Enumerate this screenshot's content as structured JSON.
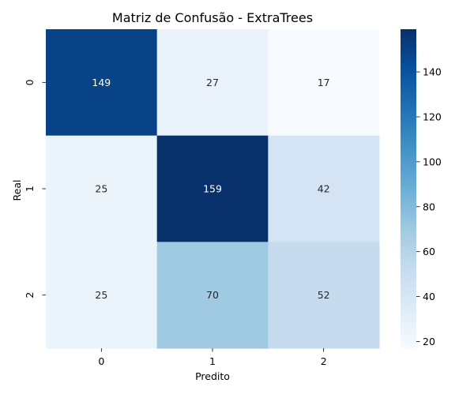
{
  "chart_data": {
    "type": "heatmap",
    "title": "Matriz de Confusão - ExtraTrees",
    "xlabel": "Predito",
    "ylabel": "Real",
    "x_categories": [
      "0",
      "1",
      "2"
    ],
    "y_categories": [
      "0",
      "1",
      "2"
    ],
    "values": [
      [
        149,
        27,
        17
      ],
      [
        25,
        159,
        42
      ],
      [
        25,
        70,
        52
      ]
    ],
    "colorbar": {
      "min": 17,
      "max": 159,
      "ticks": [
        20,
        40,
        60,
        80,
        100,
        120,
        140
      ],
      "colormap": "Blues"
    },
    "annotation_colors": {
      "dark_cell_text": "#ffffff",
      "light_cell_text": "#262626"
    }
  }
}
